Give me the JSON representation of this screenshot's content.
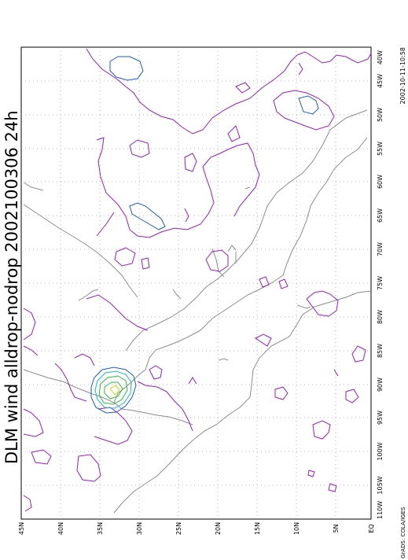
{
  "title": "DLM wind alldrop-nodrop 2002100306 24h",
  "timestamp": "2002-10-11-10:58",
  "credit": "GrADS: COLA/IGES",
  "lon_labels": [
    "40W",
    "45W",
    "50W",
    "55W",
    "60W",
    "65W",
    "70W",
    "75W",
    "80W",
    "85W",
    "90W",
    "95W",
    "100W",
    "105W",
    "110W"
  ],
  "lat_labels": [
    "45N",
    "40N",
    "35N",
    "30N",
    "25N",
    "20N",
    "15N",
    "10N",
    "5N",
    "EQ"
  ],
  "colors": {
    "coast": "#8c8c8c",
    "grid": "#a0a0a0",
    "contour_purple": "#9a1ac8",
    "contour_blue": "#1a5ad2",
    "contour_cyan": "#1ab4d2",
    "contour_green": "#28be3c",
    "contour_yellow": "#d2d21a"
  }
}
